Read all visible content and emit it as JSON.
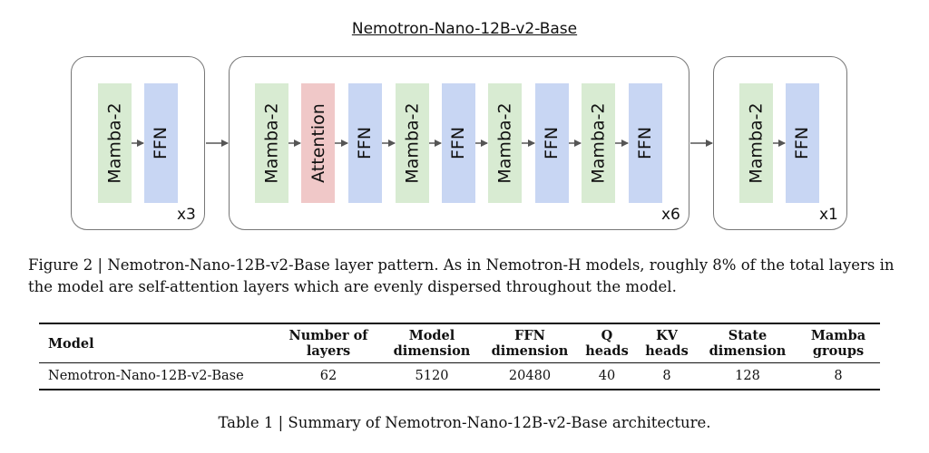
{
  "figure": {
    "title": "Nemotron-Nano-12B-v2-Base",
    "groups": [
      {
        "blocks": [
          "Mamba-2",
          "FFN"
        ],
        "multiplier": "x3"
      },
      {
        "blocks": [
          "Mamba-2",
          "Attention",
          "FFN",
          "Mamba-2",
          "FFN",
          "Mamba-2",
          "FFN",
          "Mamba-2",
          "FFN"
        ],
        "multiplier": "x6"
      },
      {
        "blocks": [
          "Mamba-2",
          "FFN"
        ],
        "multiplier": "x1"
      }
    ],
    "colors": {
      "mamba": "#d8ebd2",
      "ffn": "#c8d6f3",
      "attention": "#f0c8c8"
    },
    "caption": "Figure 2 | Nemotron-Nano-12B-v2-Base layer pattern. As in Nemotron-H models, roughly 8% of the total layers in the model are self-attention layers which are evenly dispersed throughout the model."
  },
  "table": {
    "headers": [
      "Model",
      "Number of layers",
      "Model dimension",
      "FFN dimension",
      "Q heads",
      "KV heads",
      "State dimension",
      "Mamba groups"
    ],
    "rows": [
      [
        "Nemotron-Nano-12B-v2-Base",
        "62",
        "5120",
        "20480",
        "40",
        "8",
        "128",
        "8"
      ]
    ],
    "caption": "Table 1 | Summary of Nemotron-Nano-12B-v2-Base architecture."
  }
}
